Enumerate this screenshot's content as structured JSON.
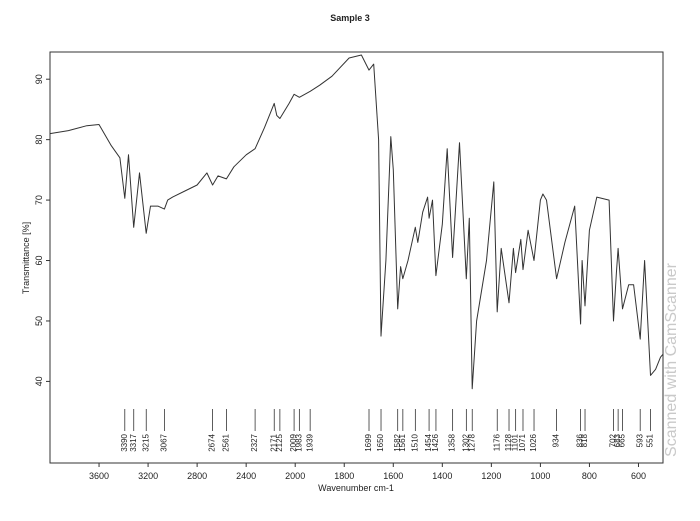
{
  "chart_data": {
    "type": "line",
    "title": "Sample 3",
    "x_label": "Wavenumber cm-1",
    "y_label": "Transmittance [%]",
    "watermark": "Scanned with CamScanner",
    "xlim": [
      4000,
      500
    ],
    "x_scale_break": 2000,
    "ylim": [
      26.5,
      94.5
    ],
    "xticks": [
      3600,
      3200,
      2800,
      2400,
      2000,
      1800,
      1600,
      1400,
      1200,
      1000,
      800,
      600
    ],
    "yticks": [
      40,
      50,
      60,
      70,
      80,
      90
    ],
    "color": "#333333",
    "x": [
      4000,
      3850,
      3700,
      3600,
      3500,
      3430,
      3390,
      3360,
      3317,
      3270,
      3215,
      3180,
      3120,
      3067,
      3040,
      3000,
      2900,
      2800,
      2720,
      2674,
      2630,
      2561,
      2500,
      2400,
      2327,
      2250,
      2171,
      2150,
      2125,
      2050,
      2009,
      1983,
      1939,
      1900,
      1850,
      1780,
      1730,
      1699,
      1680,
      1660,
      1650,
      1630,
      1610,
      1600,
      1582,
      1570,
      1561,
      1540,
      1510,
      1500,
      1480,
      1460,
      1454,
      1440,
      1426,
      1400,
      1380,
      1358,
      1330,
      1302,
      1290,
      1278,
      1260,
      1220,
      1190,
      1176,
      1160,
      1128,
      1110,
      1101,
      1080,
      1071,
      1050,
      1026,
      1000,
      990,
      975,
      934,
      900,
      860,
      836,
      830,
      818,
      800,
      770,
      720,
      702,
      690,
      683,
      665,
      640,
      620,
      593,
      575,
      551,
      530,
      510,
      500
    ],
    "values": [
      81,
      81.5,
      82.3,
      82.5,
      79,
      77,
      70.3,
      77.5,
      65.5,
      74.5,
      64.5,
      69,
      69,
      68.5,
      70,
      70.5,
      71.5,
      72.5,
      74.5,
      72.5,
      74,
      73.5,
      75.5,
      77.5,
      78.5,
      82,
      86,
      84,
      83.5,
      86,
      87.5,
      87,
      88,
      89,
      90.5,
      93.5,
      94,
      91.5,
      92.5,
      80,
      47.5,
      60,
      80.5,
      75,
      52,
      59,
      57,
      60,
      65.5,
      63,
      68,
      70.5,
      67,
      70,
      57.5,
      66,
      78.5,
      60.5,
      79.5,
      57,
      67,
      38.8,
      50,
      60,
      73,
      51.5,
      62,
      53,
      62,
      58,
      63.5,
      58.5,
      65,
      60,
      70,
      71,
      70,
      57,
      63,
      69,
      49.5,
      60,
      52.5,
      65,
      70.5,
      70,
      50,
      58,
      62,
      52,
      56,
      56,
      47,
      60,
      41,
      42,
      44,
      44.5
    ],
    "peak_labels": [
      3390,
      3317,
      3215,
      3067,
      2674,
      2561,
      2327,
      2171,
      2125,
      2009,
      1983,
      1939,
      1699,
      1650,
      1582,
      1561,
      1510,
      1454,
      1426,
      1358,
      1302,
      1278,
      1176,
      1128,
      1101,
      1071,
      1026,
      934,
      836,
      818,
      702,
      683,
      665,
      593,
      551
    ]
  }
}
